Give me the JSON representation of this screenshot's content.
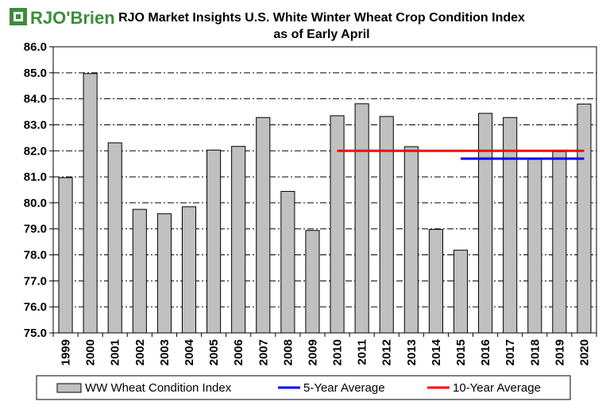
{
  "logo": {
    "text": "RJO'Brien",
    "color": "#3c8d3c"
  },
  "chart_data": {
    "type": "bar",
    "title": "RJO Market Insights U.S. White Winter Wheat Crop Condition Index",
    "subtitle": "as of Early April",
    "xlabel": "",
    "ylabel": "",
    "ylim": [
      75.0,
      86.0
    ],
    "y_ticks": [
      "75.0",
      "76.0",
      "77.0",
      "78.0",
      "79.0",
      "80.0",
      "81.0",
      "82.0",
      "83.0",
      "84.0",
      "85.0",
      "86.0"
    ],
    "categories": [
      "1999",
      "2000",
      "2001",
      "2002",
      "2003",
      "2004",
      "2005",
      "2006",
      "2007",
      "2008",
      "2009",
      "2010",
      "2011",
      "2012",
      "2013",
      "2014",
      "2015",
      "2016",
      "2017",
      "2018",
      "2019",
      "2020"
    ],
    "series": [
      {
        "name": "WW Wheat Condition Index",
        "type": "bar",
        "color": "#c0c0c0",
        "values": [
          80.97,
          84.97,
          82.31,
          79.75,
          79.58,
          79.85,
          82.03,
          82.17,
          83.28,
          80.44,
          78.94,
          83.35,
          83.81,
          83.32,
          82.16,
          78.98,
          78.18,
          83.44,
          83.28,
          81.71,
          81.97,
          83.8
        ]
      },
      {
        "name": "5-Year Average",
        "type": "line",
        "color": "#0000ff",
        "x_range": [
          "2015",
          "2020"
        ],
        "value": 81.7
      },
      {
        "name": "10-Year Average",
        "type": "line",
        "color": "#ff0000",
        "x_range": [
          "2010",
          "2020"
        ],
        "value": 82.0
      }
    ],
    "grid": true,
    "legend_position": "bottom"
  }
}
